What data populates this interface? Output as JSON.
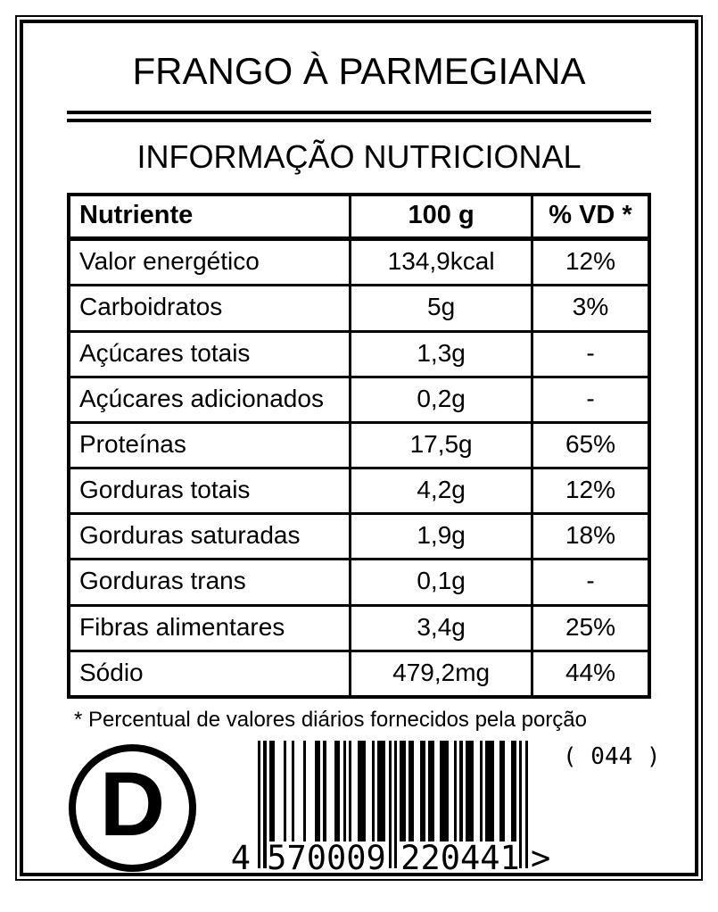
{
  "label": {
    "title": "FRANGO À PARMEGIANA",
    "subtitle": "INFORMAÇÃO NUTRICIONAL",
    "table": {
      "headers": {
        "nutrient": "Nutriente",
        "amount": "100 g",
        "dv": "% VD *"
      },
      "rows": [
        {
          "nutrient": "Valor energético",
          "amount": "134,9kcal",
          "dv": "12%"
        },
        {
          "nutrient": "Carboidratos",
          "amount": "5g",
          "dv": "3%"
        },
        {
          "nutrient": "Açúcares totais",
          "amount": "1,3g",
          "dv": "-"
        },
        {
          "nutrient": "Açúcares adicionados",
          "amount": "0,2g",
          "dv": "-"
        },
        {
          "nutrient": "Proteínas",
          "amount": "17,5g",
          "dv": "65%"
        },
        {
          "nutrient": "Gorduras totais",
          "amount": "4,2g",
          "dv": "12%"
        },
        {
          "nutrient": "Gorduras saturadas",
          "amount": "1,9g",
          "dv": "18%"
        },
        {
          "nutrient": "Gorduras trans",
          "amount": "0,1g",
          "dv": "-"
        },
        {
          "nutrient": "Fibras alimentares",
          "amount": "3,4g",
          "dv": "25%"
        },
        {
          "nutrient": "Sódio",
          "amount": "479,2mg",
          "dv": "44%"
        }
      ]
    },
    "footnote": "* Percentual de valores diários fornecidos pela porção",
    "logo_letter": "D",
    "barcode": {
      "code_tag": "( 044 )",
      "first_digit": "4",
      "left_group": "570009",
      "right_group": "220441",
      "trailing": ">",
      "modules": "10101100010010001000110100011010100111001011101010110110011011001110010101110010111001100110101"
    },
    "colors": {
      "ink": "#000000",
      "paper": "#ffffff"
    }
  }
}
